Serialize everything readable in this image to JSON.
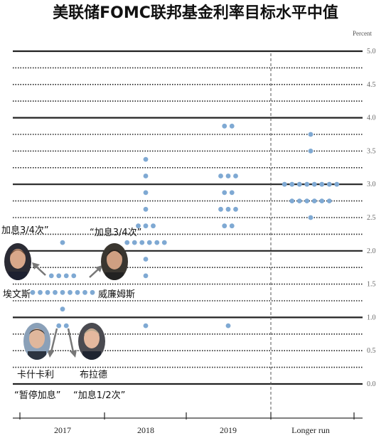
{
  "title": "美联储FOMC联邦基金利率目标水平中值",
  "chart_data": {
    "type": "scatter",
    "unit_label": "Percent",
    "yticks": [
      "0.0",
      "0.5",
      "1.0",
      "1.5",
      "2.0",
      "2.5",
      "3.0",
      "3.5",
      "4.0",
      "4.5",
      "5.0"
    ],
    "ylim": [
      0,
      5
    ],
    "categories": [
      "2017",
      "2018",
      "2019",
      "Longer run"
    ],
    "dot_color": "#7fa9d3",
    "dots": [
      {
        "cat": "2017",
        "y": 2.125,
        "n": 1
      },
      {
        "cat": "2017",
        "y": 1.625,
        "n": 4
      },
      {
        "cat": "2017",
        "y": 1.375,
        "n": 9
      },
      {
        "cat": "2017",
        "y": 1.125,
        "n": 1
      },
      {
        "cat": "2017",
        "y": 0.875,
        "n": 2
      },
      {
        "cat": "2018",
        "y": 3.375,
        "n": 1
      },
      {
        "cat": "2018",
        "y": 3.125,
        "n": 1
      },
      {
        "cat": "2018",
        "y": 2.875,
        "n": 1
      },
      {
        "cat": "2018",
        "y": 2.625,
        "n": 1
      },
      {
        "cat": "2018",
        "y": 2.375,
        "n": 3
      },
      {
        "cat": "2018",
        "y": 2.125,
        "n": 6
      },
      {
        "cat": "2018",
        "y": 1.875,
        "n": 1
      },
      {
        "cat": "2018",
        "y": 1.625,
        "n": 1
      },
      {
        "cat": "2018",
        "y": 0.875,
        "n": 1
      },
      {
        "cat": "2019",
        "y": 3.875,
        "n": 2
      },
      {
        "cat": "2019",
        "y": 3.125,
        "n": 3
      },
      {
        "cat": "2019",
        "y": 2.875,
        "n": 2
      },
      {
        "cat": "2019",
        "y": 2.625,
        "n": 3
      },
      {
        "cat": "2019",
        "y": 2.375,
        "n": 2
      },
      {
        "cat": "2019",
        "y": 0.875,
        "n": 1
      },
      {
        "cat": "Longer run",
        "y": 3.75,
        "n": 1
      },
      {
        "cat": "Longer run",
        "y": 3.5,
        "n": 1
      },
      {
        "cat": "Longer run",
        "y": 3.0,
        "n": 8
      },
      {
        "cat": "Longer run",
        "y": 2.75,
        "n": 6
      },
      {
        "cat": "Longer run",
        "y": 2.5,
        "n": 1
      }
    ]
  },
  "annotations": {
    "evans_quote": "加息3/4次”",
    "evans_name": "埃文斯",
    "williams_quote": "“加息3/4次”",
    "williams_name": "威廉姆斯",
    "kashkari_name": "卡什卡利",
    "kashkari_quote": "“暂停加息”",
    "bullard_name": "布拉德",
    "bullard_quote": "“加息1/2次”"
  }
}
